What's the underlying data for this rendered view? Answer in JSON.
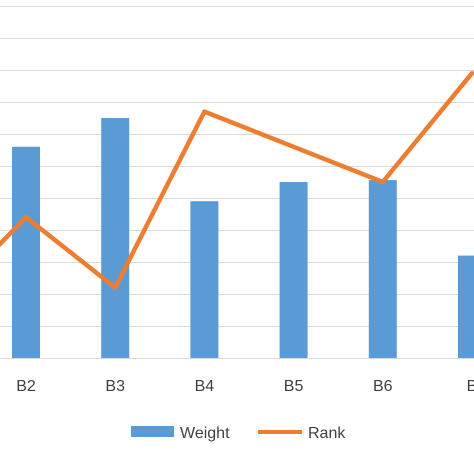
{
  "chart_data": {
    "type": "bar",
    "categories": [
      "B2",
      "B3",
      "B4",
      "B5",
      "B6",
      "B"
    ],
    "series": [
      {
        "name": "Weight",
        "kind": "bar",
        "color": "#5B9BD5",
        "values": [
          6.6,
          7.5,
          4.9,
          5.5,
          5.56,
          3.2
        ]
      },
      {
        "name": "Rank",
        "kind": "line",
        "color": "#ED7D31",
        "values": [
          4.4,
          2.2,
          7.7,
          6.6,
          5.5,
          8.9
        ]
      }
    ],
    "line_left_edge_value": 3.5,
    "ylim": [
      0,
      11
    ],
    "grid": true,
    "legend_position": "bottom"
  }
}
